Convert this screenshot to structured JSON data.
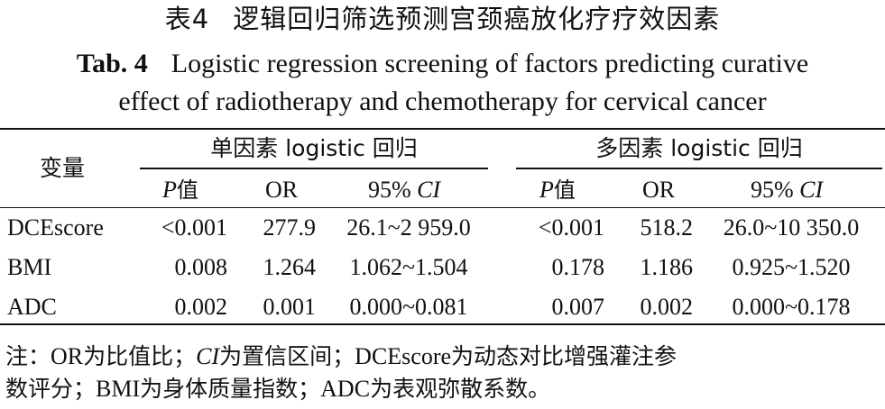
{
  "title": {
    "cn_number": "表4",
    "cn_text": "逻辑回归筛选预测宫颈癌放化疗疗效因素",
    "en_label": "Tab. 4",
    "en_line1": "Logistic regression screening of factors predicting curative",
    "en_line2": "effect of radiotherapy and chemotherapy for cervical cancer"
  },
  "table": {
    "var_header": "变量",
    "univariate_header": "单因素 logistic 回归",
    "multivariate_header": "多因素 logistic 回归",
    "sub_p_italic": "P",
    "sub_p_cn": "值",
    "sub_or": "OR",
    "sub_ci_prefix": "95%",
    "sub_ci_italic": "CI",
    "rows": [
      {
        "variable": "DCEscore",
        "uni_p": "<0.001",
        "uni_or": "277.9",
        "uni_ci": "26.1~2 959.0",
        "multi_p": "<0.001",
        "multi_or": "518.2",
        "multi_ci": "26.0~10 350.0"
      },
      {
        "variable": "BMI",
        "uni_p": "0.008",
        "uni_or": "1.264",
        "uni_ci": "1.062~1.504",
        "multi_p": "0.178",
        "multi_or": "1.186",
        "multi_ci": "0.925~1.520"
      },
      {
        "variable": "ADC",
        "uni_p": "0.002",
        "uni_or": "0.001",
        "uni_ci": "0.000~0.081",
        "multi_p": "0.007",
        "multi_or": "0.002",
        "multi_ci": "0.000~0.178"
      }
    ]
  },
  "note": {
    "p1": "注：",
    "p2": "OR",
    "p3": "为比值比；",
    "p4": "CI",
    "p5": "为置信区间；",
    "p6": "DCEscore",
    "p7": "为动态对比增强灌注参",
    "p8": "数评分；",
    "p9": "BMI",
    "p10": "为身体质量指数；",
    "p11": "ADC",
    "p12": "为表观弥散系数。"
  }
}
